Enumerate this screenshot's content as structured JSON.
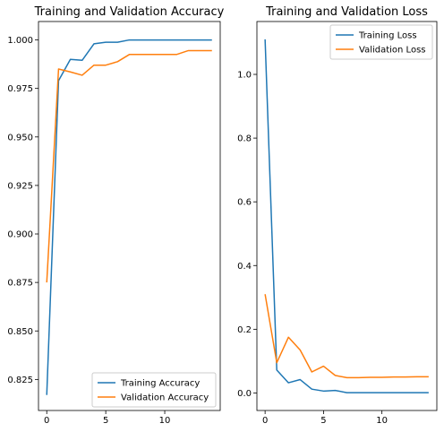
{
  "chart_data": [
    {
      "type": "line",
      "title": "Training and Validation Accuracy",
      "xlabel": "",
      "ylabel": "",
      "xlim": [
        -0.7,
        14.7
      ],
      "ylim": [
        0.809,
        1.0095
      ],
      "xticks": [
        0,
        5,
        10
      ],
      "yticks": [
        0.825,
        0.85,
        0.875,
        0.9,
        0.925,
        0.95,
        0.975,
        1.0
      ],
      "ytick_labels": [
        "0.825",
        "0.850",
        "0.875",
        "0.900",
        "0.925",
        "0.950",
        "0.975",
        "1.000"
      ],
      "grid": false,
      "legend_position": "bottom-right",
      "x": [
        0,
        1,
        2,
        3,
        4,
        5,
        6,
        7,
        8,
        9,
        10,
        11,
        12,
        13,
        14
      ],
      "series": [
        {
          "name": "Training Accuracy",
          "color": "#1f77b4",
          "values": [
            0.817,
            0.979,
            0.99,
            0.9895,
            0.998,
            0.9988,
            0.9988,
            1.0,
            1.0,
            1.0,
            1.0,
            1.0,
            1.0,
            1.0,
            1.0
          ]
        },
        {
          "name": "Validation Accuracy",
          "color": "#ff7f0e",
          "values": [
            0.875,
            0.985,
            0.9835,
            0.9818,
            0.987,
            0.987,
            0.9888,
            0.9925,
            0.9925,
            0.9925,
            0.9925,
            0.9925,
            0.9945,
            0.9945,
            0.9945
          ]
        }
      ]
    },
    {
      "type": "line",
      "title": "Training and Validation Loss",
      "xlabel": "",
      "ylabel": "",
      "xlim": [
        -0.7,
        14.7
      ],
      "ylim": [
        -0.055,
        1.166
      ],
      "xticks": [
        0,
        5,
        10
      ],
      "yticks": [
        0.0,
        0.2,
        0.4,
        0.6,
        0.8,
        1.0
      ],
      "ytick_labels": [
        "0.0",
        "0.2",
        "0.4",
        "0.6",
        "0.8",
        "1.0"
      ],
      "grid": false,
      "legend_position": "top-right",
      "x": [
        0,
        1,
        2,
        3,
        4,
        5,
        6,
        7,
        8,
        9,
        10,
        11,
        12,
        13,
        14
      ],
      "series": [
        {
          "name": "Training Loss",
          "color": "#1f77b4",
          "values": [
            1.11,
            0.072,
            0.032,
            0.042,
            0.012,
            0.006,
            0.008,
            0.001,
            0.001,
            0.001,
            0.001,
            0.001,
            0.001,
            0.001,
            0.001
          ]
        },
        {
          "name": "Validation Loss",
          "color": "#ff7f0e",
          "values": [
            0.31,
            0.095,
            0.175,
            0.135,
            0.066,
            0.084,
            0.055,
            0.048,
            0.048,
            0.049,
            0.049,
            0.05,
            0.05,
            0.051,
            0.051
          ]
        }
      ]
    }
  ]
}
